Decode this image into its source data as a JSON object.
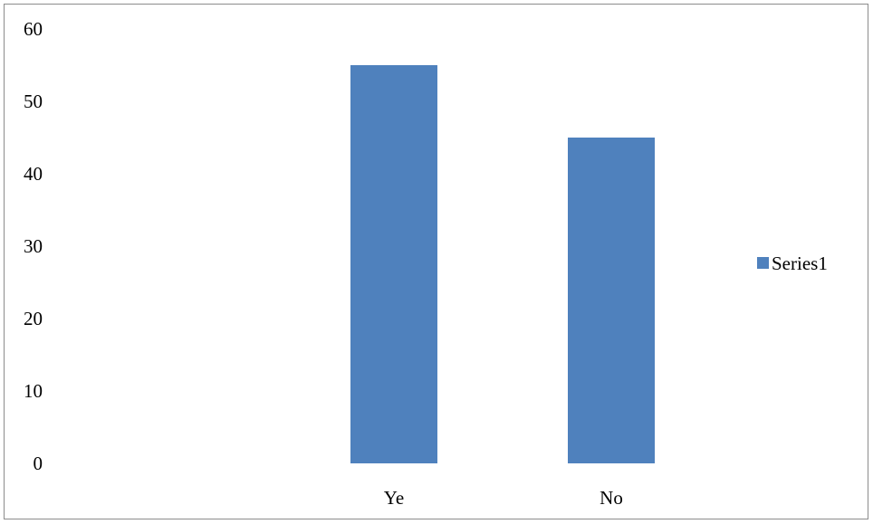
{
  "chart_data": {
    "type": "bar",
    "categories": [
      "Ye",
      "No"
    ],
    "series": [
      {
        "name": "Series1",
        "values": [
          55,
          45
        ],
        "color": "#4f81bd"
      }
    ],
    "title": "",
    "xlabel": "",
    "ylabel": "",
    "ylim": [
      0,
      60
    ],
    "yticks": [
      "0",
      "10",
      "20",
      "30",
      "40",
      "50",
      "60"
    ],
    "grid": false,
    "legend": "right"
  }
}
